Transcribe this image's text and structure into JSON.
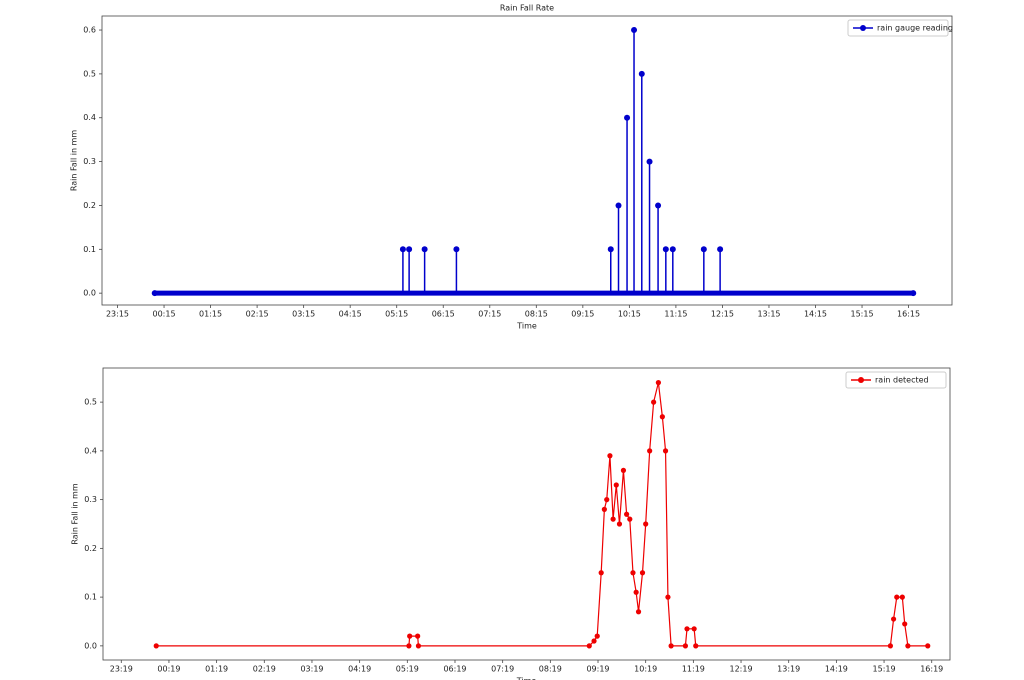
{
  "chart_data": [
    {
      "type": "stem",
      "title": "Rain Fall Rate",
      "xlabel": "Time",
      "ylabel": "Rain Fall in mm",
      "legend": "upper right",
      "xlim": [
        "22:55",
        "17:11"
      ],
      "ylim": [
        -0.027,
        0.632
      ],
      "xticks": [
        "23:15",
        "00:15",
        "01:15",
        "02:15",
        "03:15",
        "04:15",
        "05:15",
        "06:15",
        "07:15",
        "08:15",
        "09:15",
        "10:15",
        "11:15",
        "12:15",
        "13:15",
        "14:15",
        "15:15",
        "16:15"
      ],
      "yticks": [
        {
          "value": 0,
          "label": "0.0"
        },
        0.1,
        0.2,
        0.3,
        0.4,
        0.5,
        0.6
      ],
      "series": [
        {
          "name": "rain gauge reading",
          "color": "#0000cc",
          "x": [
            "00:03",
            "05:23",
            "05:31",
            "05:51",
            "06:32",
            "09:51",
            "10:01",
            "10:12",
            "10:21",
            "10:31",
            "10:41",
            "10:52",
            "11:02",
            "11:11",
            "11:51",
            "12:12",
            "16:21"
          ],
          "values": [
            0,
            0.1,
            0.1,
            0.1,
            0.1,
            0.1,
            0.2,
            0.4,
            0.6,
            0.5,
            0.3,
            0.2,
            0.1,
            0.1,
            0.1,
            0.1,
            0
          ]
        }
      ]
    },
    {
      "type": "line",
      "xlabel": "Time",
      "ylabel": "Rain Fall in mm",
      "legend": "upper right",
      "xlim": [
        "22:56",
        "16:42"
      ],
      "ylim": [
        -0.029,
        0.57
      ],
      "xticks": [
        "23:19",
        "00:19",
        "01:19",
        "02:19",
        "03:19",
        "04:19",
        "05:19",
        "06:19",
        "07:19",
        "08:19",
        "09:19",
        "10:19",
        "11:19",
        "12:19",
        "13:19",
        "14:19",
        "15:19",
        "16:19"
      ],
      "yticks": [
        {
          "value": 0,
          "label": "0.0"
        },
        0.1,
        0.2,
        0.3,
        0.4,
        0.5
      ],
      "series": [
        {
          "name": "rain detected",
          "color": "#ee0000",
          "x": [
            "00:03",
            "05:21",
            "05:22",
            "05:32",
            "05:33",
            "09:08",
            "09:14",
            "09:18",
            "09:23",
            "09:27",
            "09:30",
            "09:34",
            "09:38",
            "09:42",
            "09:46",
            "09:51",
            "09:55",
            "09:59",
            "10:03",
            "10:07",
            "10:10",
            "10:15",
            "10:19",
            "10:24",
            "10:29",
            "10:35",
            "10:40",
            "10:44",
            "10:47",
            "10:51",
            "11:09",
            "11:11",
            "11:20",
            "11:22",
            "15:27",
            "15:31",
            "15:35",
            "15:42",
            "15:45",
            "15:49",
            "16:14"
          ],
          "values": [
            0,
            0,
            0.02,
            0.02,
            0,
            0,
            0.01,
            0.02,
            0.15,
            0.28,
            0.3,
            0.39,
            0.26,
            0.33,
            0.25,
            0.36,
            0.27,
            0.26,
            0.15,
            0.11,
            0.07,
            0.15,
            0.25,
            0.4,
            0.5,
            0.54,
            0.47,
            0.4,
            0.1,
            0,
            0,
            0.035,
            0.035,
            0,
            0,
            0.055,
            0.1,
            0.1,
            0.045,
            0,
            0
          ]
        }
      ]
    }
  ]
}
